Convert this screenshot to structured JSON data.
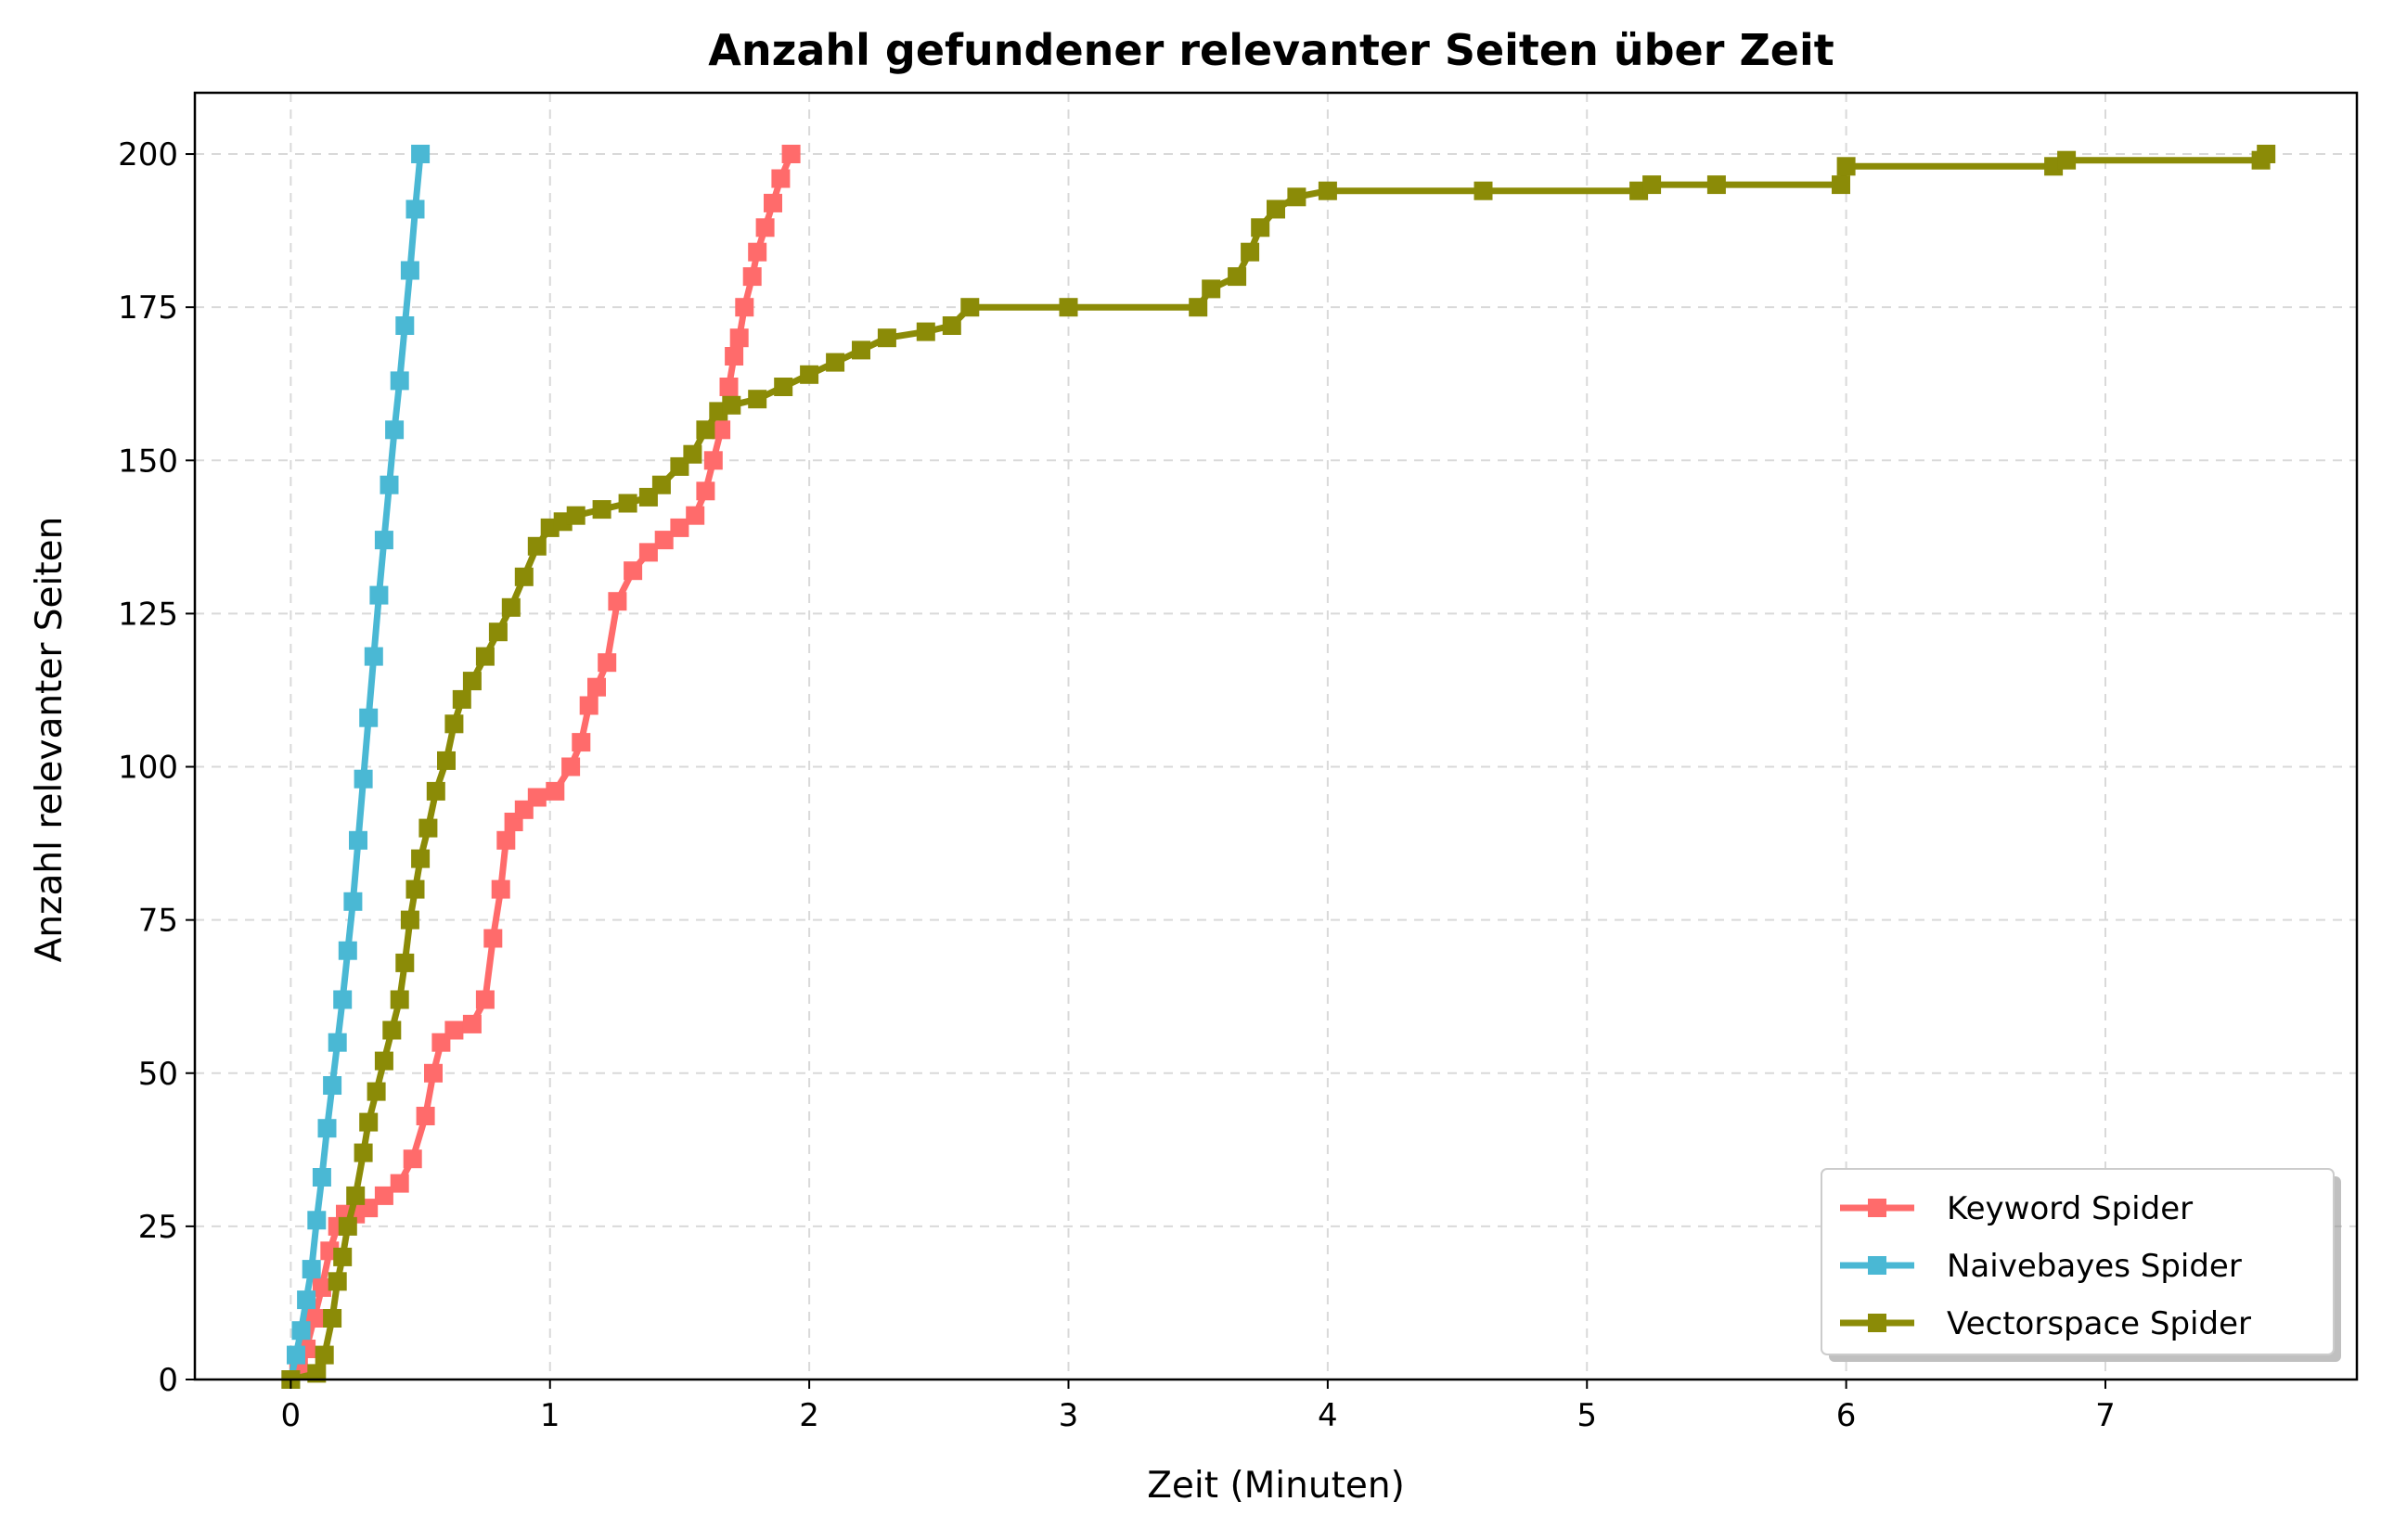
{
  "chart_data": {
    "type": "line",
    "title": "Anzahl gefundener relevanter Seiten über Zeit",
    "xlabel": "Zeit (Minuten)",
    "ylabel": "Anzahl relevanter Seiten",
    "xlim": [
      -0.37,
      7.97
    ],
    "ylim": [
      0,
      210
    ],
    "xticks": [
      0,
      1,
      2,
      3,
      4,
      5,
      6,
      7
    ],
    "yticks": [
      0,
      25,
      50,
      75,
      100,
      125,
      150,
      175,
      200
    ],
    "grid": true,
    "legend_position": "lower-right",
    "series": [
      {
        "name": "Keyword Spider",
        "color": "#ff6b6b",
        "marker": "square",
        "points": [
          [
            0,
            0
          ],
          [
            0.03,
            2
          ],
          [
            0.06,
            5
          ],
          [
            0.09,
            10
          ],
          [
            0.12,
            15
          ],
          [
            0.15,
            21
          ],
          [
            0.18,
            25
          ],
          [
            0.21,
            27
          ],
          [
            0.25,
            27
          ],
          [
            0.3,
            28
          ],
          [
            0.36,
            30
          ],
          [
            0.42,
            32
          ],
          [
            0.47,
            36
          ],
          [
            0.52,
            43
          ],
          [
            0.55,
            50
          ],
          [
            0.58,
            55
          ],
          [
            0.63,
            57
          ],
          [
            0.7,
            58
          ],
          [
            0.75,
            62
          ],
          [
            0.78,
            72
          ],
          [
            0.81,
            80
          ],
          [
            0.83,
            88
          ],
          [
            0.86,
            91
          ],
          [
            0.9,
            93
          ],
          [
            0.95,
            95
          ],
          [
            1.02,
            96
          ],
          [
            1.08,
            100
          ],
          [
            1.12,
            104
          ],
          [
            1.15,
            110
          ],
          [
            1.18,
            113
          ],
          [
            1.22,
            117
          ],
          [
            1.26,
            127
          ],
          [
            1.32,
            132
          ],
          [
            1.38,
            135
          ],
          [
            1.44,
            137
          ],
          [
            1.5,
            139
          ],
          [
            1.56,
            141
          ],
          [
            1.6,
            145
          ],
          [
            1.63,
            150
          ],
          [
            1.66,
            155
          ],
          [
            1.69,
            162
          ],
          [
            1.71,
            167
          ],
          [
            1.73,
            170
          ],
          [
            1.75,
            175
          ],
          [
            1.78,
            180
          ],
          [
            1.8,
            184
          ],
          [
            1.83,
            188
          ],
          [
            1.86,
            192
          ],
          [
            1.89,
            196
          ],
          [
            1.93,
            200
          ]
        ]
      },
      {
        "name": "Naivebayes Spider",
        "color": "#4ab8d4",
        "marker": "square",
        "points": [
          [
            0,
            0
          ],
          [
            0.02,
            4
          ],
          [
            0.04,
            8
          ],
          [
            0.06,
            13
          ],
          [
            0.08,
            18
          ],
          [
            0.1,
            26
          ],
          [
            0.12,
            33
          ],
          [
            0.14,
            41
          ],
          [
            0.16,
            48
          ],
          [
            0.18,
            55
          ],
          [
            0.2,
            62
          ],
          [
            0.22,
            70
          ],
          [
            0.24,
            78
          ],
          [
            0.26,
            88
          ],
          [
            0.28,
            98
          ],
          [
            0.3,
            108
          ],
          [
            0.32,
            118
          ],
          [
            0.34,
            128
          ],
          [
            0.36,
            137
          ],
          [
            0.38,
            146
          ],
          [
            0.4,
            155
          ],
          [
            0.42,
            163
          ],
          [
            0.44,
            172
          ],
          [
            0.46,
            181
          ],
          [
            0.48,
            191
          ],
          [
            0.5,
            200
          ]
        ]
      },
      {
        "name": "Vectorspace Spider",
        "color": "#8b8b07",
        "marker": "square",
        "points": [
          [
            0,
            0
          ],
          [
            0.1,
            1
          ],
          [
            0.13,
            4
          ],
          [
            0.16,
            10
          ],
          [
            0.18,
            16
          ],
          [
            0.2,
            20
          ],
          [
            0.22,
            25
          ],
          [
            0.25,
            30
          ],
          [
            0.28,
            37
          ],
          [
            0.3,
            42
          ],
          [
            0.33,
            47
          ],
          [
            0.36,
            52
          ],
          [
            0.39,
            57
          ],
          [
            0.42,
            62
          ],
          [
            0.44,
            68
          ],
          [
            0.46,
            75
          ],
          [
            0.48,
            80
          ],
          [
            0.5,
            85
          ],
          [
            0.53,
            90
          ],
          [
            0.56,
            96
          ],
          [
            0.6,
            101
          ],
          [
            0.63,
            107
          ],
          [
            0.66,
            111
          ],
          [
            0.7,
            114
          ],
          [
            0.75,
            118
          ],
          [
            0.8,
            122
          ],
          [
            0.85,
            126
          ],
          [
            0.9,
            131
          ],
          [
            0.95,
            136
          ],
          [
            1.0,
            139
          ],
          [
            1.05,
            140
          ],
          [
            1.1,
            141
          ],
          [
            1.2,
            142
          ],
          [
            1.3,
            143
          ],
          [
            1.38,
            144
          ],
          [
            1.43,
            146
          ],
          [
            1.5,
            149
          ],
          [
            1.55,
            151
          ],
          [
            1.6,
            155
          ],
          [
            1.65,
            158
          ],
          [
            1.7,
            159
          ],
          [
            1.8,
            160
          ],
          [
            1.9,
            162
          ],
          [
            2.0,
            164
          ],
          [
            2.1,
            166
          ],
          [
            2.2,
            168
          ],
          [
            2.3,
            170
          ],
          [
            2.45,
            171
          ],
          [
            2.55,
            172
          ],
          [
            2.62,
            175
          ],
          [
            3.0,
            175
          ],
          [
            3.5,
            175
          ],
          [
            3.55,
            178
          ],
          [
            3.65,
            180
          ],
          [
            3.7,
            184
          ],
          [
            3.74,
            188
          ],
          [
            3.8,
            191
          ],
          [
            3.88,
            193
          ],
          [
            4.0,
            194
          ],
          [
            4.6,
            194
          ],
          [
            5.2,
            194
          ],
          [
            5.25,
            195
          ],
          [
            5.5,
            195
          ],
          [
            5.98,
            195
          ],
          [
            6.0,
            198
          ],
          [
            6.8,
            198
          ],
          [
            6.85,
            199
          ],
          [
            7.6,
            199
          ],
          [
            7.62,
            200
          ]
        ]
      }
    ]
  }
}
